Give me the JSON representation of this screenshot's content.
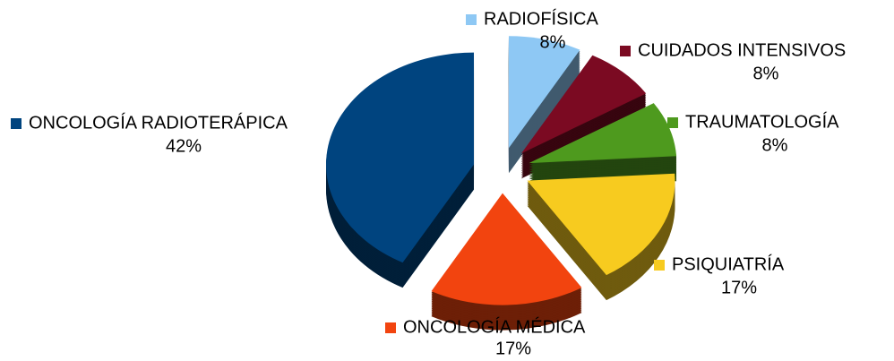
{
  "chart_data": {
    "type": "pie",
    "categories": [
      "RADIOFÍSICA",
      "CUIDADOS INTENSIVOS",
      "TRAUMATOLOGÍA",
      "PSIQUIATRÍA",
      "ONCOLOGÍA MÉDICA",
      "ONCOLOGÍA RADIOTERÁPICA"
    ],
    "values": [
      8,
      8,
      8,
      17,
      17,
      42
    ],
    "value_labels": [
      "8%",
      "8%",
      "8%",
      "17%",
      "17%",
      "42%"
    ],
    "colors": [
      "#8ec8f4",
      "#7b0a22",
      "#4e9a1e",
      "#f7cb1f",
      "#f2440f",
      "#00447f"
    ]
  }
}
